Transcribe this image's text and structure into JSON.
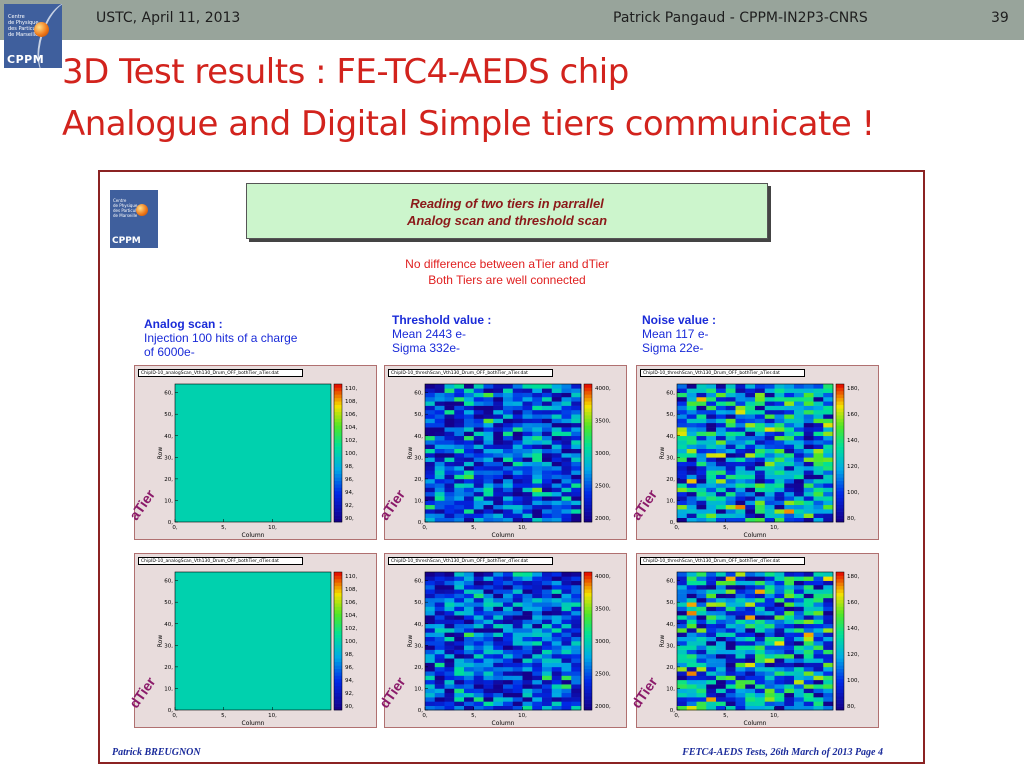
{
  "header": {
    "left": "USTC, April 11, 2013",
    "center": "Patrick Pangaud - CPPM-IN2P3-CNRS",
    "page": "39"
  },
  "logo": {
    "lines": [
      "Centre",
      "de Physique",
      "des Particules",
      "de Marseille"
    ],
    "word": "CPPM"
  },
  "title": {
    "line1": "3D Test results : FE-TC4-AEDS chip",
    "line2": "Analogue and Digital Simple tiers communicate !"
  },
  "figure": {
    "banner": {
      "line1": "Reading of two tiers in parrallel",
      "line2": "Analog scan and threshold scan"
    },
    "note": {
      "line1": "No difference between aTier and dTier",
      "line2": "Both Tiers are well connected"
    },
    "analog": {
      "heading": "Analog scan :",
      "line1": "Injection 100 hits of a charge",
      "line2": "of 6000e-"
    },
    "threshold": {
      "heading": "Threshold value :",
      "line1": "Mean 2443 e-",
      "line2": "Sigma 332e-"
    },
    "noise": {
      "heading": "Noise value :",
      "line1": "Mean 117 e-",
      "line2": "Sigma 22e-"
    },
    "footer_left": "Patrick BREUGNON",
    "footer_right": "FETC4-AEDS Tests, 26th March of 2013    Page 4"
  },
  "chart_data": [
    {
      "type": "heatmap",
      "title": "ChipID-10_analogScan_Vth130_Drum_OFF_bothTier_aTier.dat",
      "tier_label": "aTier",
      "xlabel": "Column",
      "ylabel": "Row",
      "x_ticks": [
        "0,",
        "5,",
        "10,"
      ],
      "y_ticks": [
        "0,",
        "10,",
        "20,",
        "30,",
        "40,",
        "50,",
        "60,"
      ],
      "color_ticks": [
        "110,",
        "108,",
        "106,",
        "104,",
        "102,",
        "100,",
        "98,",
        "96,",
        "94,",
        "92,",
        "90,"
      ],
      "xlim": [
        0,
        16
      ],
      "ylim": [
        0,
        64
      ],
      "zlim": [
        90,
        110
      ],
      "pattern": "uniform",
      "value": 100
    },
    {
      "type": "heatmap",
      "title": "ChipID-10_threshScan_Vth130_Drum_OFF_bothTier_aTier.dat",
      "tier_label": "aTier",
      "xlabel": "Column",
      "ylabel": "Row",
      "x_ticks": [
        "0,",
        "5,",
        "10,"
      ],
      "y_ticks": [
        "0,",
        "10,",
        "20,",
        "30,",
        "40,",
        "50,",
        "60,"
      ],
      "color_ticks": [
        "4000,",
        "3500,",
        "3000,",
        "2500,",
        "2000,"
      ],
      "xlim": [
        0,
        16
      ],
      "ylim": [
        0,
        64
      ],
      "zlim": [
        1800,
        4300
      ],
      "pattern": "random",
      "mean": 2443,
      "sigma": 332
    },
    {
      "type": "heatmap",
      "title": "ChipID-10_threshScan_Vth130_Drum_OFF_bothTier_aTier.dat",
      "tier_label": "aTier",
      "xlabel": "Column",
      "ylabel": "Row",
      "x_ticks": [
        "0,",
        "5,",
        "10,"
      ],
      "y_ticks": [
        "0,",
        "10,",
        "20,",
        "30,",
        "40,",
        "50,",
        "60,"
      ],
      "color_ticks": [
        "180,",
        "160,",
        "140,",
        "120,",
        "100,",
        "80,"
      ],
      "xlim": [
        0,
        16
      ],
      "ylim": [
        0,
        64
      ],
      "zlim": [
        70,
        200
      ],
      "pattern": "random",
      "mean": 117,
      "sigma": 22
    },
    {
      "type": "heatmap",
      "title": "ChipID-10_analogScan_Vth130_Drum_OFF_bothTier_dTier.dat",
      "tier_label": "dTier",
      "xlabel": "Column",
      "ylabel": "Row",
      "x_ticks": [
        "0,",
        "5,",
        "10,"
      ],
      "y_ticks": [
        "0,",
        "10,",
        "20,",
        "30,",
        "40,",
        "50,",
        "60,"
      ],
      "color_ticks": [
        "110,",
        "108,",
        "106,",
        "104,",
        "102,",
        "100,",
        "98,",
        "96,",
        "94,",
        "92,",
        "90,"
      ],
      "xlim": [
        0,
        16
      ],
      "ylim": [
        0,
        64
      ],
      "zlim": [
        90,
        110
      ],
      "pattern": "uniform",
      "value": 100
    },
    {
      "type": "heatmap",
      "title": "ChipID-10_threshScan_Vth130_Drum_OFF_bothTier_dTier.dat",
      "tier_label": "dTier",
      "xlabel": "Column",
      "ylabel": "Row",
      "x_ticks": [
        "0,",
        "5,",
        "10,"
      ],
      "y_ticks": [
        "0,",
        "10,",
        "20,",
        "30,",
        "40,",
        "50,",
        "60,"
      ],
      "color_ticks": [
        "4000,",
        "3500,",
        "3000,",
        "2500,",
        "2000,"
      ],
      "xlim": [
        0,
        16
      ],
      "ylim": [
        0,
        64
      ],
      "zlim": [
        1800,
        4300
      ],
      "pattern": "random",
      "mean": 2443,
      "sigma": 332
    },
    {
      "type": "heatmap",
      "title": "ChipID-10_threshScan_Vth130_Drum_OFF_bothTier_dTier.dat",
      "tier_label": "dTier",
      "xlabel": "Column",
      "ylabel": "Row",
      "x_ticks": [
        "0,",
        "5,",
        "10,"
      ],
      "y_ticks": [
        "0,",
        "10,",
        "20,",
        "30,",
        "40,",
        "50,",
        "60,"
      ],
      "color_ticks": [
        "180,",
        "160,",
        "140,",
        "120,",
        "100,",
        "80,"
      ],
      "xlim": [
        0,
        16
      ],
      "ylim": [
        0,
        64
      ],
      "zlim": [
        70,
        200
      ],
      "pattern": "random",
      "mean": 117,
      "sigma": 22
    }
  ]
}
